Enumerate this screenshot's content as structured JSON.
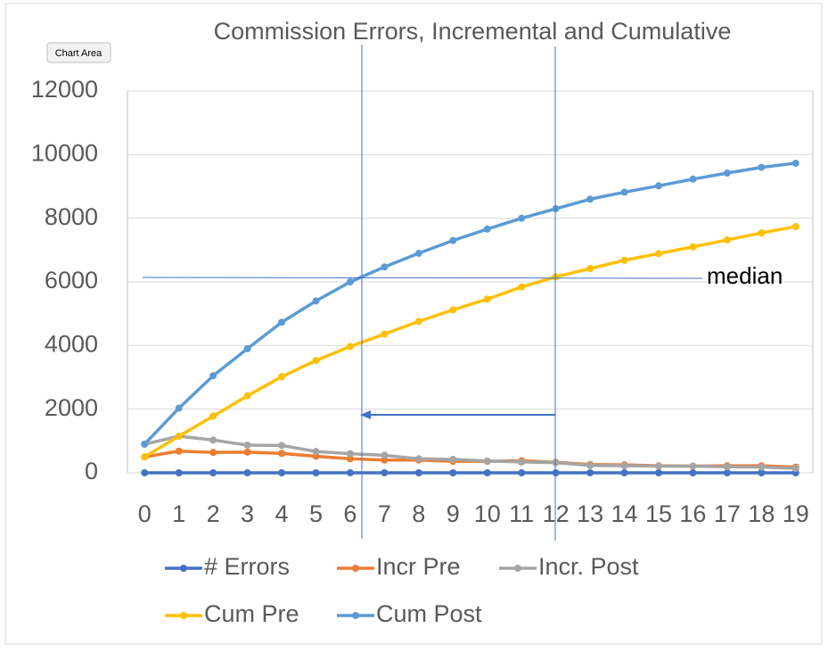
{
  "chart_data": {
    "type": "line",
    "title": "Commission Errors, Incremental and  Cumulative",
    "tooltip": "Chart Area",
    "annotation": "median",
    "categories": [
      "0",
      "1",
      "2",
      "3",
      "4",
      "5",
      "6",
      "7",
      "8",
      "9",
      "10",
      "11",
      "12",
      "13",
      "14",
      "15",
      "16",
      "17",
      "18",
      "19"
    ],
    "ylim": [
      0,
      12000
    ],
    "yticks": [
      0,
      2000,
      4000,
      6000,
      8000,
      10000,
      12000
    ],
    "grid": true,
    "legend": "bottom",
    "series": [
      {
        "name": "# Errors",
        "color": "#4472c4",
        "values": [
          0,
          0,
          0,
          0,
          0,
          0,
          0,
          0,
          0,
          0,
          0,
          0,
          0,
          0,
          0,
          0,
          0,
          0,
          0,
          0
        ]
      },
      {
        "name": "Incr Pre",
        "color": "#ed7d31",
        "values": [
          500,
          680,
          640,
          650,
          610,
          520,
          440,
          400,
          400,
          360,
          360,
          380,
          330,
          260,
          250,
          220,
          210,
          220,
          220,
          180
        ]
      },
      {
        "name": "Incr. Post",
        "color": "#a5a5a5",
        "values": [
          900,
          1150,
          1030,
          870,
          860,
          670,
          600,
          550,
          440,
          420,
          370,
          340,
          320,
          230,
          220,
          210,
          210,
          190,
          180,
          140
        ]
      },
      {
        "name": "Cum Pre",
        "color": "#ffc000",
        "values": [
          500,
          1150,
          1780,
          2420,
          3020,
          3530,
          3970,
          4360,
          4760,
          5120,
          5460,
          5840,
          6160,
          6420,
          6680,
          6890,
          7100,
          7320,
          7540,
          7740
        ]
      },
      {
        "name": "Cum Post",
        "color": "#5b9bd5",
        "values": [
          900,
          2030,
          3050,
          3900,
          4730,
          5400,
          6000,
          6470,
          6900,
          7300,
          7660,
          8000,
          8300,
          8600,
          8820,
          9020,
          9230,
          9420,
          9600,
          9730
        ]
      }
    ]
  }
}
